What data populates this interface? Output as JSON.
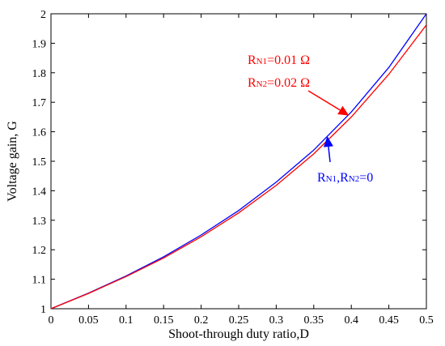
{
  "chart_data": {
    "type": "line",
    "xlabel": "Shoot-through duty ratio,D",
    "ylabel": "Voltage gain, G",
    "xlim": [
      0,
      0.5
    ],
    "ylim": [
      1,
      2
    ],
    "xticks": [
      "0",
      "0.05",
      "0.1",
      "0.15",
      "0.2",
      "0.25",
      "0.3",
      "0.35",
      "0.4",
      "0.45",
      "0.5"
    ],
    "yticks": [
      "1",
      "1.1",
      "1.2",
      "1.3",
      "1.4",
      "1.5",
      "1.6",
      "1.7",
      "1.8",
      "1.9",
      "2"
    ],
    "grid": false,
    "series": [
      {
        "color": "#0000ff",
        "x": [
          0,
          0.05,
          0.1,
          0.15,
          0.2,
          0.25,
          0.3,
          0.35,
          0.4,
          0.45,
          0.5
        ],
        "y": [
          1.0,
          1.053,
          1.111,
          1.176,
          1.25,
          1.333,
          1.429,
          1.538,
          1.667,
          1.818,
          2.0
        ]
      },
      {
        "color": "#ff0000",
        "x": [
          0,
          0.05,
          0.1,
          0.15,
          0.2,
          0.25,
          0.3,
          0.35,
          0.4,
          0.45,
          0.5
        ],
        "y": [
          1.0,
          1.052,
          1.109,
          1.172,
          1.244,
          1.325,
          1.418,
          1.525,
          1.65,
          1.795,
          1.962
        ]
      }
    ],
    "annotations": [
      {
        "color": "#ff0000",
        "lines": [
          {
            "r": "R",
            "sub": "N1",
            "rest": "=0.01 Ω"
          },
          {
            "r": "R",
            "sub": "N2",
            "rest": "=0.02 Ω"
          }
        ],
        "arrow_to": [
          0.397,
          1.655
        ]
      },
      {
        "color": "#0000ff",
        "lines": [
          {
            "r": "R",
            "sub": "N1",
            "rest": ",R",
            "sub2": "N2",
            "rest2": "=0"
          }
        ],
        "arrow_to": [
          0.368,
          1.585
        ]
      }
    ]
  }
}
